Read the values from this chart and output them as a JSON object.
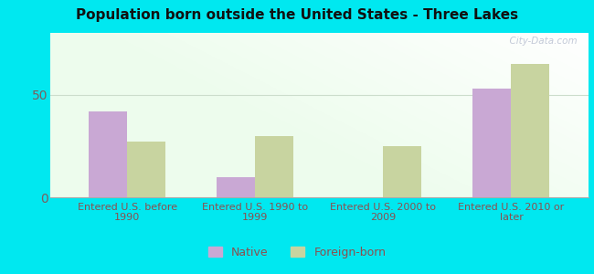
{
  "title": "Population born outside the United States - Three Lakes",
  "categories": [
    "Entered U.S. before\n1990",
    "Entered U.S. 1990 to\n1999",
    "Entered U.S. 2000 to\n2009",
    "Entered U.S. 2010 or\nlater"
  ],
  "native_values": [
    42,
    10,
    0,
    53
  ],
  "foreign_values": [
    27,
    30,
    25,
    65
  ],
  "native_color": "#c9a8d4",
  "foreign_color": "#c8d4a0",
  "background_outer": "#00e8f0",
  "bar_width": 0.3,
  "ylim": [
    0,
    80
  ],
  "yticks": [
    0,
    50
  ],
  "legend_native": "Native",
  "legend_foreign": "Foreign-born",
  "watermark": "  City-Data.com",
  "title_fontsize": 11,
  "tick_label_color": "#7a6060",
  "axis_label_color": "#8b5050",
  "gridline_color": "#ccddcc",
  "title_color": "#111111"
}
